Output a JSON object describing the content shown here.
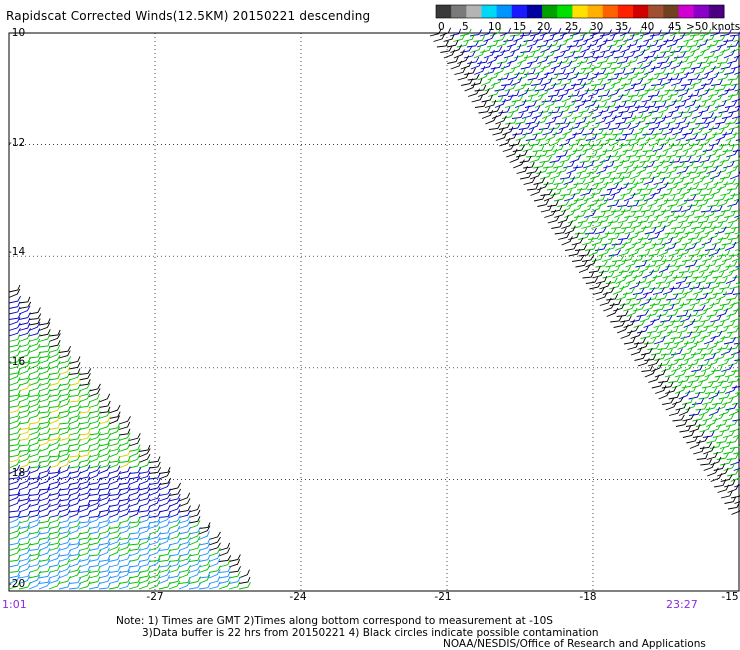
{
  "title": "Rapidscat Corrected Winds(12.5KM) 20150221 descending",
  "legend": {
    "colors": [
      "#3a3a3a",
      "#7a7a7a",
      "#b4b4b4",
      "#00d8f8",
      "#0094ff",
      "#1a1aff",
      "#0000a0",
      "#00a000",
      "#00e000",
      "#ffe000",
      "#ffb000",
      "#ff6000",
      "#ff2000",
      "#d00000",
      "#a05030",
      "#704020",
      "#d000d0",
      "#8a00c8",
      "#4b0082"
    ],
    "labels": [
      "0",
      "5",
      "10",
      "15",
      "20",
      "25",
      "30",
      "35",
      "40",
      "45",
      ">50 knots"
    ]
  },
  "axes": {
    "x_ticks": [
      "-27",
      "-24",
      "-21",
      "-18",
      "-15"
    ],
    "y_ticks": [
      "-10",
      "-12",
      "-14",
      "-16",
      "-18",
      "-20"
    ],
    "x_range": [
      -30,
      -15
    ],
    "y_range": [
      -20,
      -10
    ]
  },
  "times": {
    "left": "1:01",
    "right": "23:27"
  },
  "notes": {
    "line1": "Note: 1) Times are GMT 2)Times along bottom correspond to measurement at -10S",
    "line2": "3)Data buffer is 22 hrs from 20150221 4) Black circles indicate possible contamination",
    "line3": "NOAA/NESDIS/Office of Research and Applications"
  },
  "wind_colors": {
    "calm": "#000000",
    "light": "#0000c8",
    "mid": "#1e90ff",
    "moderate": "#00c000",
    "fresh": "#e0d000"
  }
}
